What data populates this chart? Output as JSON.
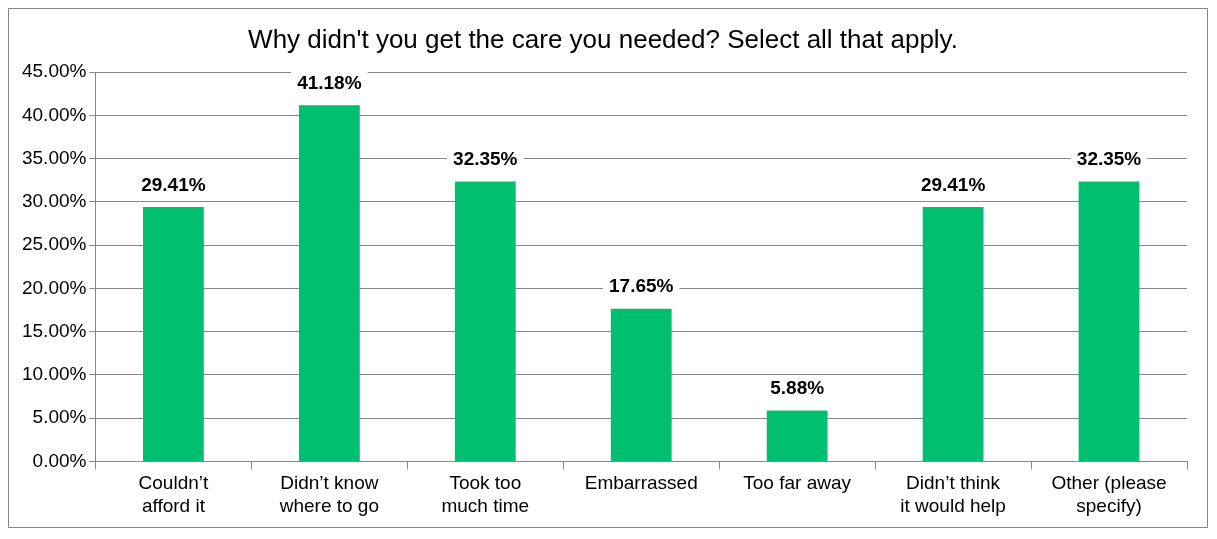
{
  "chart_data": {
    "type": "bar",
    "title": "Why didn't you get the care you needed? Select all that apply.",
    "categories": [
      "Couldn’t afford it",
      "Didn’t know where to go",
      "Took too much time",
      "Embarrassed",
      "Too far away",
      "Didn’t think it would help",
      "Other (please specify)"
    ],
    "values": [
      29.41,
      41.18,
      32.35,
      17.65,
      5.88,
      29.41,
      32.35
    ],
    "value_labels": [
      "29.41%",
      "41.18%",
      "32.35%",
      "17.65%",
      "5.88%",
      "29.41%",
      "32.35%"
    ],
    "color": "#00bf6f",
    "ylim": [
      0,
      45
    ],
    "yticks": [
      {
        "value": 0,
        "label": "0.00%"
      },
      {
        "value": 5,
        "label": "5.00%"
      },
      {
        "value": 10,
        "label": "10.00%"
      },
      {
        "value": 15,
        "label": "15.00%"
      },
      {
        "value": 20,
        "label": "20.00%"
      },
      {
        "value": 25,
        "label": "25.00%"
      },
      {
        "value": 30,
        "label": "30.00%"
      },
      {
        "value": 35,
        "label": "35.00%"
      },
      {
        "value": 40,
        "label": "40.00%"
      },
      {
        "value": 45,
        "label": "45.00%"
      }
    ],
    "grid": "y",
    "legend": false
  }
}
